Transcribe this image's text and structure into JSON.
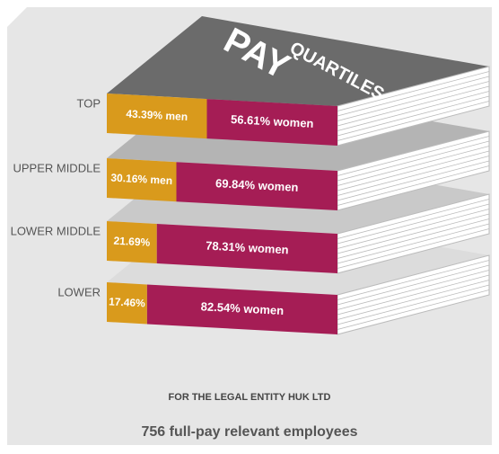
{
  "chart_data": {
    "type": "stacked-bar",
    "title_lines": [
      "PAY",
      "QUARTILES"
    ],
    "categories": [
      "TOP",
      "UPPER MIDDLE",
      "LOWER MIDDLE",
      "LOWER"
    ],
    "series": [
      {
        "color": "#d99a1c",
        "values": [
          43.39,
          30.16,
          21.69,
          17.46
        ],
        "value_labels": [
          "43.39% men",
          "30.16% men",
          "21.69%",
          "17.46%"
        ]
      },
      {
        "color": "#a51d55",
        "values": [
          56.61,
          69.84,
          78.31,
          82.54
        ],
        "value_labels": [
          "56.61% women",
          "69.84% women",
          "78.31% women",
          "82.54% women"
        ]
      }
    ],
    "note": "FOR THE LEGAL ENTITY HUK LTD",
    "caption": "756 full-pay relevant employees"
  }
}
